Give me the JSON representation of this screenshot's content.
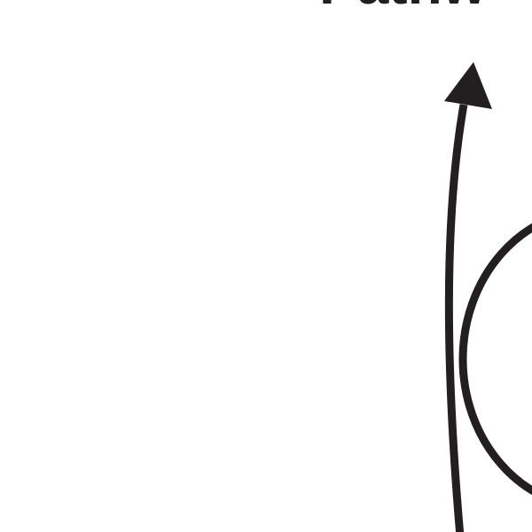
{
  "diagram": {
    "title_fragment": "Pathw",
    "stroke_color": "#231f20",
    "background_color": "#ffffff"
  }
}
